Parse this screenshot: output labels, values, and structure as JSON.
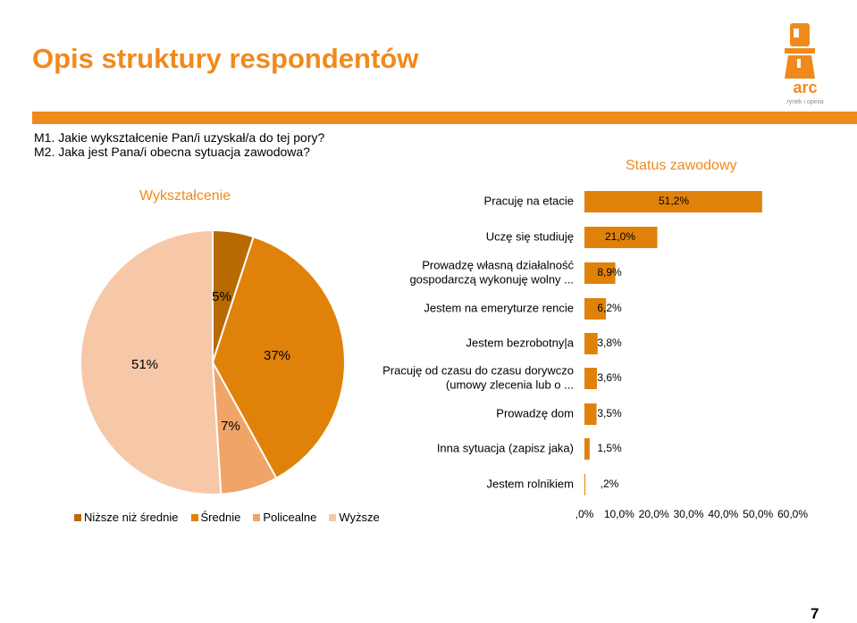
{
  "page": {
    "title": "Opis struktury respondentów",
    "questions": [
      "M1. Jakie wykształcenie Pan/i uzyskał/a do tej pory?",
      "M2. Jaka jest Pana/i obecna sytuacja zawodowa?"
    ],
    "page_number": "7",
    "brand_color": "#f08a1c"
  },
  "logo": {
    "name": "arc",
    "tagline": "rynek i opinia",
    "icon": "lighthouse-icon"
  },
  "chart_data": [
    {
      "type": "pie",
      "title": "Wykształcenie",
      "slices": [
        {
          "name": "Niższe niż średnie",
          "value": 5,
          "label": "5%",
          "color": "#b86a00"
        },
        {
          "name": "Średnie",
          "value": 37,
          "label": "37%",
          "color": "#e0820a"
        },
        {
          "name": "Policealne",
          "value": 7,
          "label": "7%",
          "color": "#f0a468"
        },
        {
          "name": "Wyższe",
          "value": 51,
          "label": "51%",
          "color": "#f6c8a8"
        }
      ],
      "legend_position": "bottom"
    },
    {
      "type": "bar",
      "orientation": "horizontal",
      "title": "Status zawodowy",
      "categories": [
        [
          "Pracuję na etacie"
        ],
        [
          "Uczę się  studiuję"
        ],
        [
          "Prowadzę własną działalność",
          "gospodarczą  wykonuję wolny ..."
        ],
        [
          "Jestem na emeryturze  rencie"
        ],
        [
          "Jestem bezrobotny|a"
        ],
        [
          "Pracuję od czasu do czasu dorywczo",
          "(umowy zlecenia lub o ..."
        ],
        [
          "Prowadzę dom"
        ],
        [
          "Inna sytuacja (zapisz jaka)"
        ],
        [
          "Jestem rolnikiem"
        ]
      ],
      "values": [
        51.2,
        21.0,
        8.9,
        6.2,
        3.8,
        3.6,
        3.5,
        1.5,
        0.2
      ],
      "value_labels": [
        "51,2%",
        "21,0%",
        "8,9%",
        "6,2%",
        "3,8%",
        "3,6%",
        "3,5%",
        "1,5%",
        ",2%"
      ],
      "xlim": [
        0,
        60
      ],
      "x_ticks": [
        ",0%",
        "10,0%",
        "20,0%",
        "30,0%",
        "40,0%",
        "50,0%",
        "60,0%"
      ],
      "bar_color": "#e0820a",
      "grid": false
    }
  ]
}
